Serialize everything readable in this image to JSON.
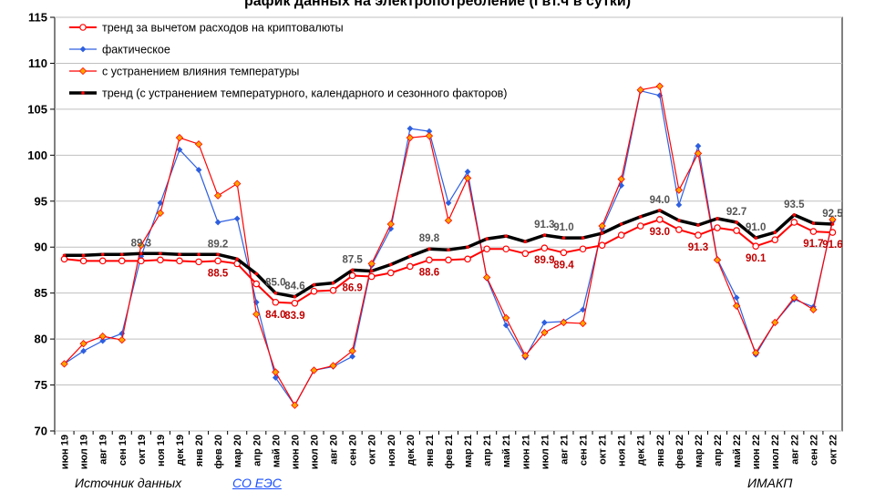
{
  "chart_data": {
    "type": "line",
    "title": "рафик данных на электропотребление (Гвт.ч в сутки)",
    "ylim": [
      70,
      115
    ],
    "yticks": [
      70,
      75,
      80,
      85,
      90,
      95,
      100,
      105,
      110,
      115
    ],
    "grid": true,
    "legend_position": "top-left",
    "categories": [
      "июн 19",
      "июл 19",
      "авг 19",
      "сен 19",
      "окт 19",
      "ноя 19",
      "дек 19",
      "янв 20",
      "фев 20",
      "мар 20",
      "апр 20",
      "май 20",
      "июн 20",
      "июл 20",
      "авг 20",
      "сен 20",
      "окт 20",
      "ноя 20",
      "дек 20",
      "янв 21",
      "фев 21",
      "мар 21",
      "апр 21",
      "май 21",
      "июн 21",
      "июл 21",
      "авг 21",
      "сен 21",
      "окт 21",
      "ноя 21",
      "дек 21",
      "янв 22",
      "фев 22",
      "мар 22",
      "апр 22",
      "май 22",
      "июн 22",
      "июл 22",
      "авг 22",
      "сен 22",
      "окт 22"
    ],
    "series": [
      {
        "name": "тренд за вычетом расходов на криптовалюты",
        "color": "#ff0000",
        "marker": "circle",
        "values": [
          88.7,
          88.5,
          88.5,
          88.5,
          88.5,
          88.6,
          88.5,
          88.4,
          88.5,
          88.2,
          86.0,
          84.0,
          83.9,
          85.2,
          85.3,
          86.9,
          86.8,
          87.2,
          87.9,
          88.6,
          88.6,
          88.7,
          89.8,
          89.8,
          89.3,
          89.9,
          89.4,
          89.8,
          90.2,
          91.3,
          92.3,
          93.0,
          91.9,
          91.3,
          92.1,
          91.8,
          90.1,
          90.8,
          92.7,
          91.7,
          91.6
        ]
      },
      {
        "name": "фактическое",
        "color": "#2e5fe0",
        "marker": "diamond",
        "values": [
          77.3,
          78.7,
          79.8,
          80.6,
          89.0,
          94.8,
          100.6,
          98.4,
          92.7,
          93.1,
          84.0,
          75.8,
          72.8,
          76.6,
          77.0,
          78.1,
          88.0,
          92.0,
          102.9,
          102.6,
          94.8,
          98.2,
          86.6,
          81.5,
          78.0,
          81.8,
          81.9,
          83.2,
          92.0,
          96.7,
          107.0,
          106.5,
          94.6,
          101.0,
          88.7,
          84.5,
          78.3,
          81.8,
          84.3,
          83.5,
          92.8
        ]
      },
      {
        "name": "с устранением влияния температуры",
        "color": "#ff0000",
        "marker_color": "#ffa500",
        "marker": "diamond",
        "values": [
          77.3,
          79.5,
          80.3,
          79.9,
          90.2,
          93.7,
          101.9,
          101.2,
          95.6,
          96.9,
          82.7,
          76.4,
          72.8,
          76.6,
          77.1,
          78.7,
          88.2,
          92.5,
          101.9,
          102.1,
          92.9,
          97.5,
          86.7,
          82.3,
          78.2,
          80.7,
          81.8,
          81.7,
          92.3,
          97.4,
          107.1,
          107.5,
          96.2,
          100.2,
          88.6,
          83.6,
          78.5,
          81.8,
          84.5,
          83.2,
          93.0
        ]
      },
      {
        "name": "тренд (с устранением температурного, календарного и сезонного факторов)",
        "color": "#000000",
        "marker": "dot",
        "values": [
          89.1,
          89.1,
          89.2,
          89.2,
          89.3,
          89.3,
          89.2,
          89.2,
          89.2,
          88.7,
          87.1,
          85.0,
          84.6,
          85.9,
          86.1,
          87.5,
          87.4,
          88.1,
          89.0,
          89.8,
          89.7,
          90.0,
          90.9,
          91.2,
          90.6,
          91.3,
          91.0,
          91.0,
          91.5,
          92.5,
          93.3,
          94.0,
          92.9,
          92.4,
          93.1,
          92.7,
          91.0,
          91.6,
          93.5,
          92.6,
          92.5
        ]
      }
    ],
    "data_labels": [
      {
        "series": 3,
        "index": 4,
        "text": "89.3",
        "style": "dark",
        "pos": "above"
      },
      {
        "series": 3,
        "index": 8,
        "text": "89.2",
        "style": "dark",
        "pos": "above"
      },
      {
        "series": 3,
        "index": 11,
        "text": "85.0",
        "style": "dark",
        "pos": "above"
      },
      {
        "series": 3,
        "index": 12,
        "text": "84.6",
        "style": "dark",
        "pos": "above"
      },
      {
        "series": 3,
        "index": 15,
        "text": "87.5",
        "style": "dark",
        "pos": "above"
      },
      {
        "series": 3,
        "index": 19,
        "text": "89.8",
        "style": "dark",
        "pos": "above"
      },
      {
        "series": 3,
        "index": 25,
        "text": "91.3",
        "style": "dark",
        "pos": "above"
      },
      {
        "series": 3,
        "index": 26,
        "text": "91.0",
        "style": "dark",
        "pos": "above"
      },
      {
        "series": 3,
        "index": 31,
        "text": "94.0",
        "style": "dark",
        "pos": "above"
      },
      {
        "series": 3,
        "index": 35,
        "text": "92.7",
        "style": "dark",
        "pos": "above"
      },
      {
        "series": 3,
        "index": 36,
        "text": "91.0",
        "style": "dark",
        "pos": "above"
      },
      {
        "series": 3,
        "index": 38,
        "text": "93.5",
        "style": "dark",
        "pos": "above"
      },
      {
        "series": 3,
        "index": 40,
        "text": "92.5",
        "style": "dark",
        "pos": "above"
      },
      {
        "series": 0,
        "index": 8,
        "text": "88.5",
        "style": "red",
        "pos": "below"
      },
      {
        "series": 0,
        "index": 11,
        "text": "84.0",
        "style": "red",
        "pos": "below"
      },
      {
        "series": 0,
        "index": 12,
        "text": "83.9",
        "style": "red",
        "pos": "below"
      },
      {
        "series": 0,
        "index": 15,
        "text": "86.9",
        "style": "red",
        "pos": "below"
      },
      {
        "series": 0,
        "index": 19,
        "text": "88.6",
        "style": "red",
        "pos": "below"
      },
      {
        "series": 0,
        "index": 25,
        "text": "89.9",
        "style": "red",
        "pos": "below"
      },
      {
        "series": 0,
        "index": 26,
        "text": "89.4",
        "style": "red",
        "pos": "below"
      },
      {
        "series": 0,
        "index": 31,
        "text": "93.0",
        "style": "red",
        "pos": "below"
      },
      {
        "series": 0,
        "index": 33,
        "text": "91.3",
        "style": "red",
        "pos": "below"
      },
      {
        "series": 0,
        "index": 36,
        "text": "90.1",
        "style": "red",
        "pos": "below"
      },
      {
        "series": 0,
        "index": 39,
        "text": "91.7",
        "style": "red",
        "pos": "below"
      },
      {
        "series": 0,
        "index": 40,
        "text": "91.6",
        "style": "red",
        "pos": "below"
      }
    ]
  },
  "footer": {
    "part1": "Источник данных",
    "link": "СО ЕЭС",
    "part3": "ИМАКП"
  }
}
